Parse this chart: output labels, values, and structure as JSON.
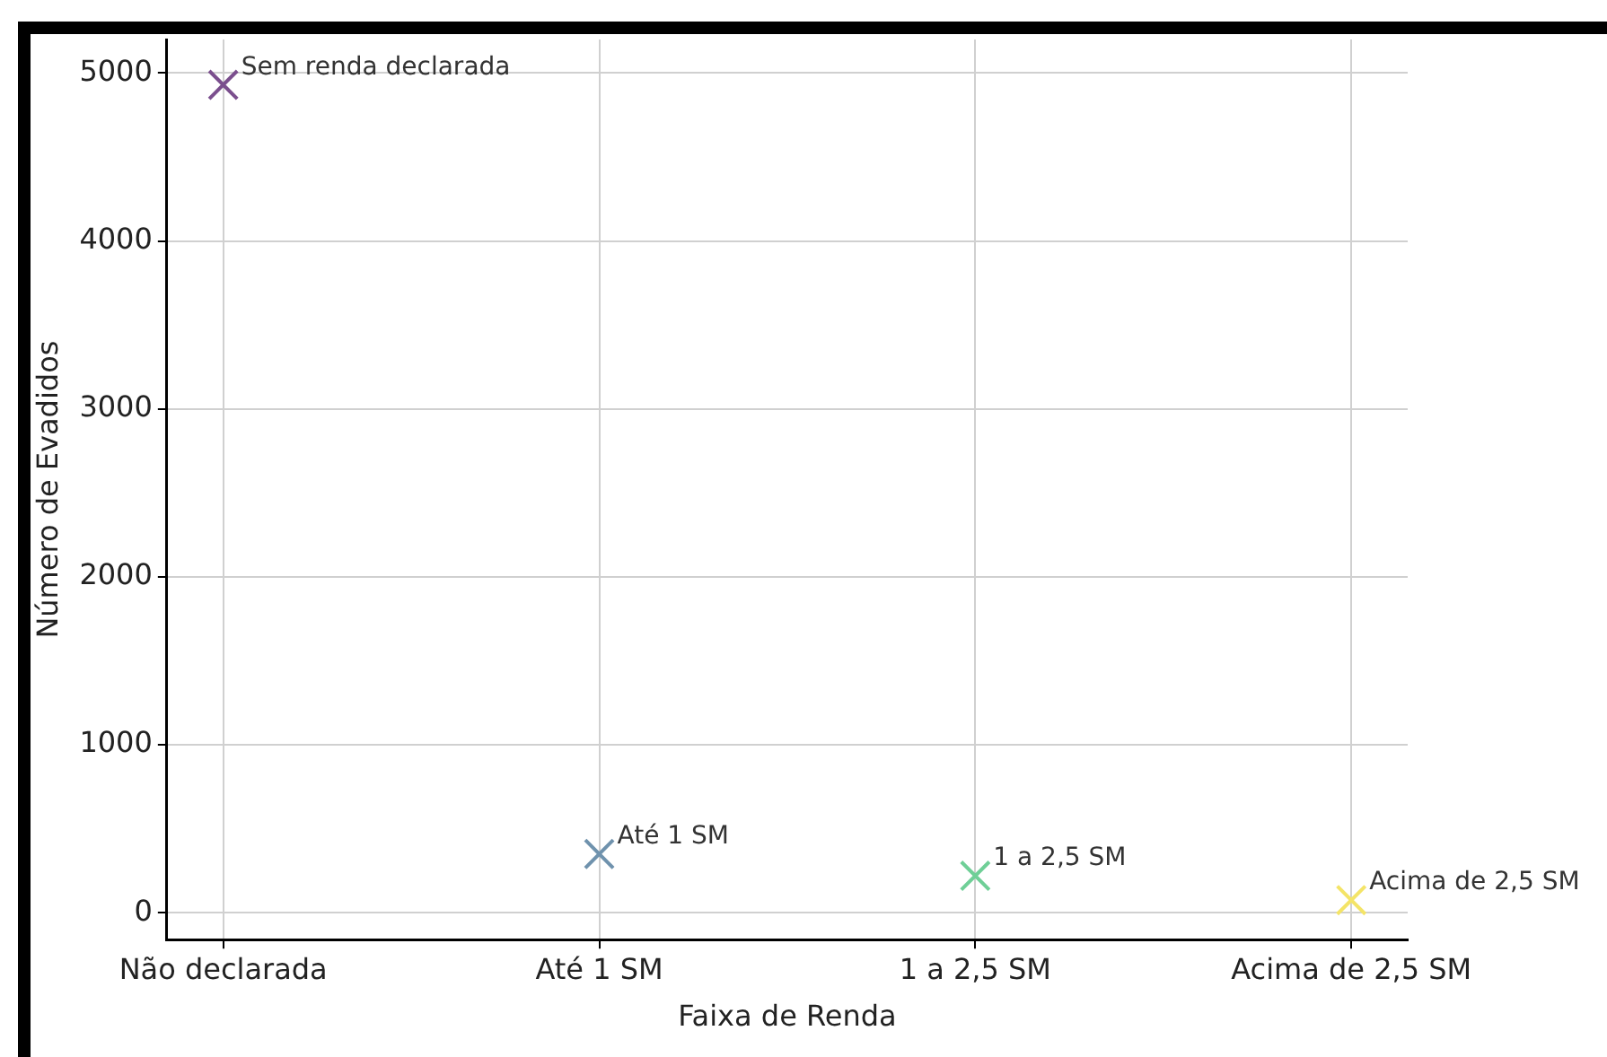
{
  "chart_data": {
    "type": "scatter",
    "xlabel": "Faixa de Renda",
    "ylabel": "Número de Evadidos",
    "categories": [
      "Não declarada",
      "Até 1 SM",
      "1 a 2,5 SM",
      "Acima de 2,5 SM"
    ],
    "series": [
      {
        "colors": [
          "#7b4f8e",
          "#6f92ad",
          "#6fcf97",
          "#f4e467"
        ],
        "values": [
          4930,
          350,
          220,
          75
        ]
      }
    ],
    "ylim": [
      -160,
      5200
    ],
    "yticks": [
      0,
      1000,
      2000,
      3000,
      4000,
      5000
    ],
    "grid": true,
    "marker": "cross",
    "legend": false,
    "annotations": [
      {
        "text": "Sem renda declarada",
        "x": "Não declarada",
        "y": 4930
      },
      {
        "text": "Até 1 SM",
        "x": "Até 1 SM",
        "y": 350
      },
      {
        "text": "1 a 2,5 SM",
        "x": "1 a 2,5 SM",
        "y": 220
      },
      {
        "text": "Acima de 2,5 SM",
        "x": "Acima de 2,5 SM",
        "y": 75
      }
    ]
  }
}
